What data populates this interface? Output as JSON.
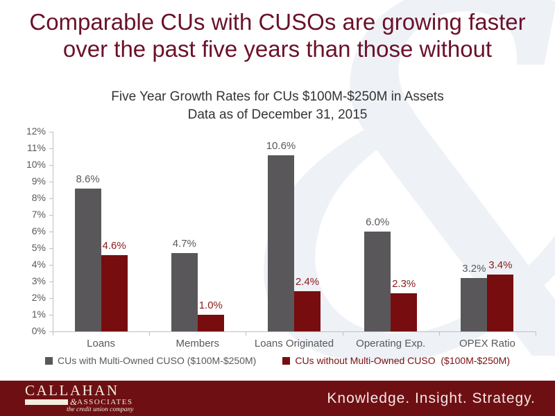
{
  "title": {
    "line1": "Comparable CUs with CUSOs are growing faster",
    "line2": "over the past five years than those without"
  },
  "subtitle": {
    "line1": "Five Year Growth Rates for CUs $100M-$250M in Assets",
    "line2": "Data as of December 31, 2015"
  },
  "watermark_glyph": "&",
  "chart_data": {
    "type": "bar",
    "title": "Five Year Growth Rates for CUs $100M-$250M in Assets",
    "subtitle": "Data as of December 31, 2015",
    "xlabel": "",
    "ylabel": "",
    "categories": [
      "Loans",
      "Members",
      "Loans Originated",
      "Operating Exp.",
      "OPEX Ratio"
    ],
    "series": [
      {
        "name": "CUs with Multi-Owned CUSO ($100M-$250M)",
        "color": "#595759",
        "label_color": "#595959",
        "legend_color": "#595959",
        "values": [
          8.6,
          4.7,
          10.6,
          6.0,
          3.2
        ]
      },
      {
        "name": "CUs without Multi-Owned CUSO  ($100M-$250M)",
        "color": "#780D0F",
        "label_color": "#8B191B",
        "legend_color": "#7B1013",
        "values": [
          4.6,
          1.0,
          2.4,
          2.3,
          3.4
        ]
      }
    ],
    "value_labels": [
      [
        "8.6%",
        "4.7%",
        "10.6%",
        "6.0%",
        "3.2%"
      ],
      [
        "4.6%",
        "1.0%",
        "2.4%",
        "2.3%",
        "3.4%"
      ]
    ],
    "ylim": [
      0,
      12
    ],
    "y_step": 1,
    "y_tick_suffix": "%",
    "grid": false,
    "legend_position": "bottom"
  },
  "footer": {
    "logo_name": "CALLAHAN",
    "logo_amp": "&",
    "logo_sub": "ASSOCIATES",
    "logo_tagline": "the credit union company",
    "slogan": "Knowledge. Insight. Strategy."
  },
  "colors": {
    "title_maroon": "#6A1129",
    "bar_gray": "#595759",
    "bar_red": "#780D0F",
    "footer_bg": "#6E1013",
    "axis_gray": "#BFBFBF",
    "watermark": "#EEF1F6"
  }
}
